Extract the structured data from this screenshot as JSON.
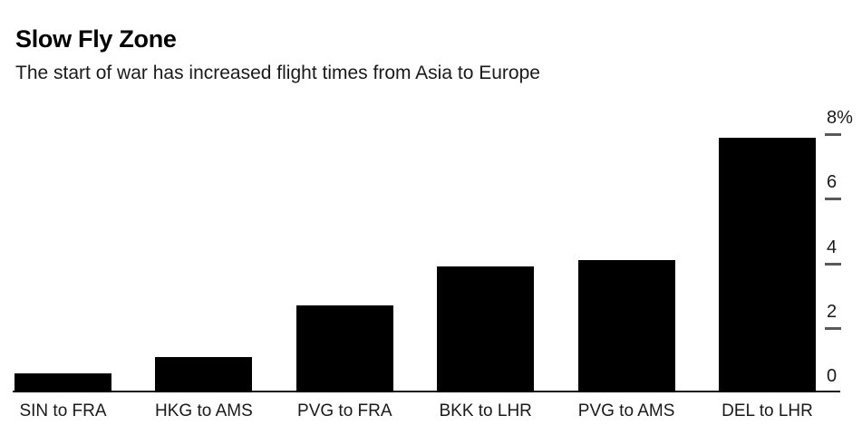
{
  "chart_data": {
    "type": "bar",
    "title": "Slow Fly Zone",
    "subtitle": "The start of war has increased flight times from Asia to Europe",
    "categories": [
      "SIN to FRA",
      "HKG to AMS",
      "PVG to FRA",
      "BKK to LHR",
      "PVG to AMS",
      "DEL to LHR"
    ],
    "values": [
      0.6,
      1.1,
      2.7,
      3.9,
      4.1,
      7.9
    ],
    "xlabel": "",
    "ylabel": "%",
    "ylim": [
      0,
      8
    ],
    "yticks": [
      0,
      2,
      4,
      6,
      8
    ],
    "ytick_labels": [
      "0",
      "2",
      "4",
      "6",
      "8%"
    ],
    "yaxis_side": "right",
    "grid": false,
    "legend": "none",
    "bar_color": "#000000",
    "axis_line_color": "#1a1a1a",
    "tick_mark_color": "#59595b",
    "tick_label_color": "#1a1a1a",
    "background_color": "#ffffff"
  }
}
